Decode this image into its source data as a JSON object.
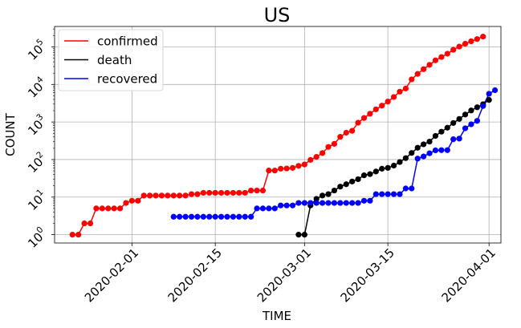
{
  "chart_data": {
    "type": "line",
    "title": "US",
    "xlabel": "TIME",
    "ylabel": "COUNT",
    "yscale": "log",
    "ylim": [
      0.6,
      350000
    ],
    "xlim": [
      "2020-01-19",
      "2020-04-03"
    ],
    "xticks": [
      "2020-02-01",
      "2020-02-15",
      "2020-03-01",
      "2020-03-15",
      "2020-04-01"
    ],
    "yticks": [
      {
        "value": 1,
        "base": "10",
        "exp": "0"
      },
      {
        "value": 10,
        "base": "10",
        "exp": "1"
      },
      {
        "value": 100,
        "base": "10",
        "exp": "2"
      },
      {
        "value": 1000,
        "base": "10",
        "exp": "3"
      },
      {
        "value": 10000,
        "base": "10",
        "exp": "4"
      },
      {
        "value": 100000,
        "base": "10",
        "exp": "5"
      }
    ],
    "grid": true,
    "legend_position": "top-left",
    "series": [
      {
        "name": "confirmed",
        "color": "#ff0000",
        "start": "2020-01-22",
        "values": [
          1,
          1,
          2,
          2,
          5,
          5,
          5,
          5,
          5,
          7,
          8,
          8,
          11,
          11,
          11,
          11,
          11,
          11,
          11,
          11,
          12,
          12,
          13,
          13,
          13,
          13,
          13,
          13,
          13,
          13,
          15,
          15,
          15,
          51,
          51,
          57,
          58,
          60,
          68,
          74,
          98,
          118,
          149,
          217,
          262,
          402,
          518,
          583,
          959,
          1281,
          1663,
          2179,
          2727,
          3499,
          4632,
          6421,
          7786,
          13680,
          19101,
          25493,
          33276,
          43847,
          53740,
          65778,
          83836,
          101657,
          121478,
          140886,
          161807,
          188172
        ]
      },
      {
        "name": "death",
        "color": "#000000",
        "start": "2020-02-29",
        "values": [
          1,
          1,
          6,
          9,
          11,
          12,
          15,
          19,
          22,
          26,
          30,
          38,
          41,
          48,
          57,
          60,
          69,
          86,
          109,
          150,
          206,
          255,
          301,
          426,
          553,
          705,
          941,
          1208,
          1578,
          2026,
          2467,
          2978,
          3873
        ]
      },
      {
        "name": "recovered",
        "color": "#0000ff",
        "start": "2020-02-08",
        "values": [
          3,
          3,
          3,
          3,
          3,
          3,
          3,
          3,
          3,
          3,
          3,
          3,
          3,
          3,
          5,
          5,
          5,
          5,
          6,
          6,
          6,
          7,
          7,
          7,
          7,
          7,
          7,
          7,
          7,
          7,
          7,
          7,
          8,
          8,
          12,
          12,
          12,
          12,
          12,
          17,
          17,
          106,
          121,
          147,
          176,
          178,
          178,
          348,
          361,
          681,
          869,
          1072,
          2665,
          5644,
          7024
        ]
      }
    ]
  }
}
